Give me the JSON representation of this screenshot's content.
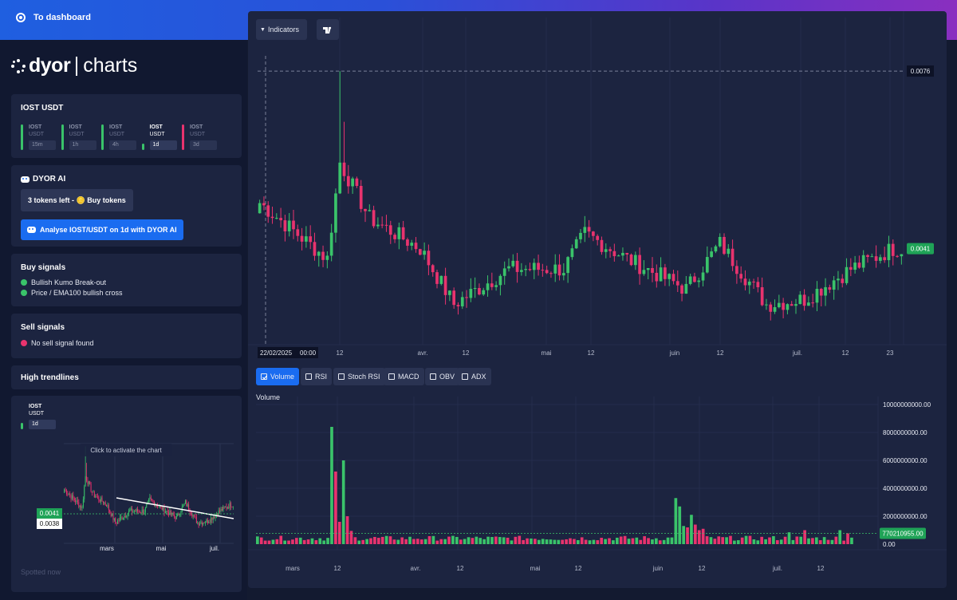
{
  "topbar": {
    "dashboard_label": "To dashboard"
  },
  "logo": {
    "brand": "dyor",
    "product": "charts"
  },
  "pair_card": {
    "title": "IOST USDT",
    "timeframes": [
      {
        "symbol": "IOST",
        "quote": "USDT",
        "tf": "15m",
        "color": "#3ac36a",
        "active": false
      },
      {
        "symbol": "IOST",
        "quote": "USDT",
        "tf": "1h",
        "color": "#3ac36a",
        "active": false
      },
      {
        "symbol": "IOST",
        "quote": "USDT",
        "tf": "4h",
        "color": "#3ac36a",
        "active": false
      },
      {
        "symbol": "IOST",
        "quote": "USDT",
        "tf": "1d",
        "color": "#3ac36a",
        "active": true
      },
      {
        "symbol": "IOST",
        "quote": "USDT",
        "tf": "3d",
        "color": "#e8336e",
        "active": false
      }
    ]
  },
  "ai_card": {
    "title": "DYOR AI",
    "tokens_button": "3 tokens left - 🪙 Buy tokens",
    "analyse_button": "Analyse IOST/USDT on 1d with DYOR AI"
  },
  "buy_signals": {
    "title": "Buy signals",
    "items": [
      "Bullish Kumo Break-out",
      "Price / EMA100 bullish cross"
    ]
  },
  "sell_signals": {
    "title": "Sell signals",
    "items": [
      "No sell signal found"
    ]
  },
  "trendlines": {
    "title": "High trendlines",
    "symbol": "IOST",
    "quote": "USDT",
    "tf": "1d",
    "overlay": "Click to activate the chart",
    "price_green": "0.0041",
    "price_white": "0.0038",
    "months": [
      "mars",
      "mai",
      "juil."
    ],
    "spotted": "Spotted now"
  },
  "toolbar": {
    "indicators_label": "Indicators",
    "tv_icon": "tradingview-icon"
  },
  "price_chart": {
    "top_label": "0.0076",
    "current_label": "0.0041",
    "crosshair_date": "22/02/2025",
    "crosshair_time": "00:00",
    "xticks": [
      "12",
      "avr.",
      "12",
      "mai",
      "12",
      "juin",
      "12",
      "juil.",
      "12",
      "23"
    ]
  },
  "indicator_tabs": [
    {
      "label": "Volume",
      "active": true
    },
    {
      "label": "RSI",
      "active": false
    },
    {
      "label": "Stoch RSI",
      "active": false
    },
    {
      "label": "MACD",
      "active": false
    },
    {
      "label": "OBV",
      "active": false
    },
    {
      "label": "ADX",
      "active": false
    }
  ],
  "volume_chart": {
    "title": "Volume",
    "yticks": [
      "10000000000.00",
      "8000000000.00",
      "6000000000.00",
      "4000000000.00",
      "2000000000.00",
      "0.00"
    ],
    "current_label": "770210955.00",
    "xticks": [
      "mars",
      "12",
      "avr.",
      "12",
      "mai",
      "12",
      "juin",
      "12",
      "juil.",
      "12"
    ]
  },
  "chart_data": {
    "type": "candlestick",
    "pair": "IOST/USDT",
    "interval": "1d",
    "price_axis_labels": [
      0.0076,
      0.0041
    ],
    "approx_close_path": [
      {
        "date": "2025-02-22",
        "close": 0.005
      },
      {
        "date": "2025-03-10",
        "close": 0.0039
      },
      {
        "date": "2025-03-13",
        "close": 0.0058
      },
      {
        "date": "2025-03-20",
        "close": 0.0047
      },
      {
        "date": "2025-04-01",
        "close": 0.0041
      },
      {
        "date": "2025-04-09",
        "close": 0.003
      },
      {
        "date": "2025-04-22",
        "close": 0.0037
      },
      {
        "date": "2025-05-05",
        "close": 0.0037
      },
      {
        "date": "2025-05-10",
        "close": 0.0044
      },
      {
        "date": "2025-05-20",
        "close": 0.0039
      },
      {
        "date": "2025-06-03",
        "close": 0.0033
      },
      {
        "date": "2025-06-11",
        "close": 0.0042
      },
      {
        "date": "2025-06-22",
        "close": 0.003
      },
      {
        "date": "2025-07-01",
        "close": 0.0031
      },
      {
        "date": "2025-07-12",
        "close": 0.0037
      },
      {
        "date": "2025-07-22",
        "close": 0.0041
      }
    ],
    "volume_axis": {
      "ylim": [
        0,
        10000000000
      ]
    },
    "volume_current": 770210955
  }
}
